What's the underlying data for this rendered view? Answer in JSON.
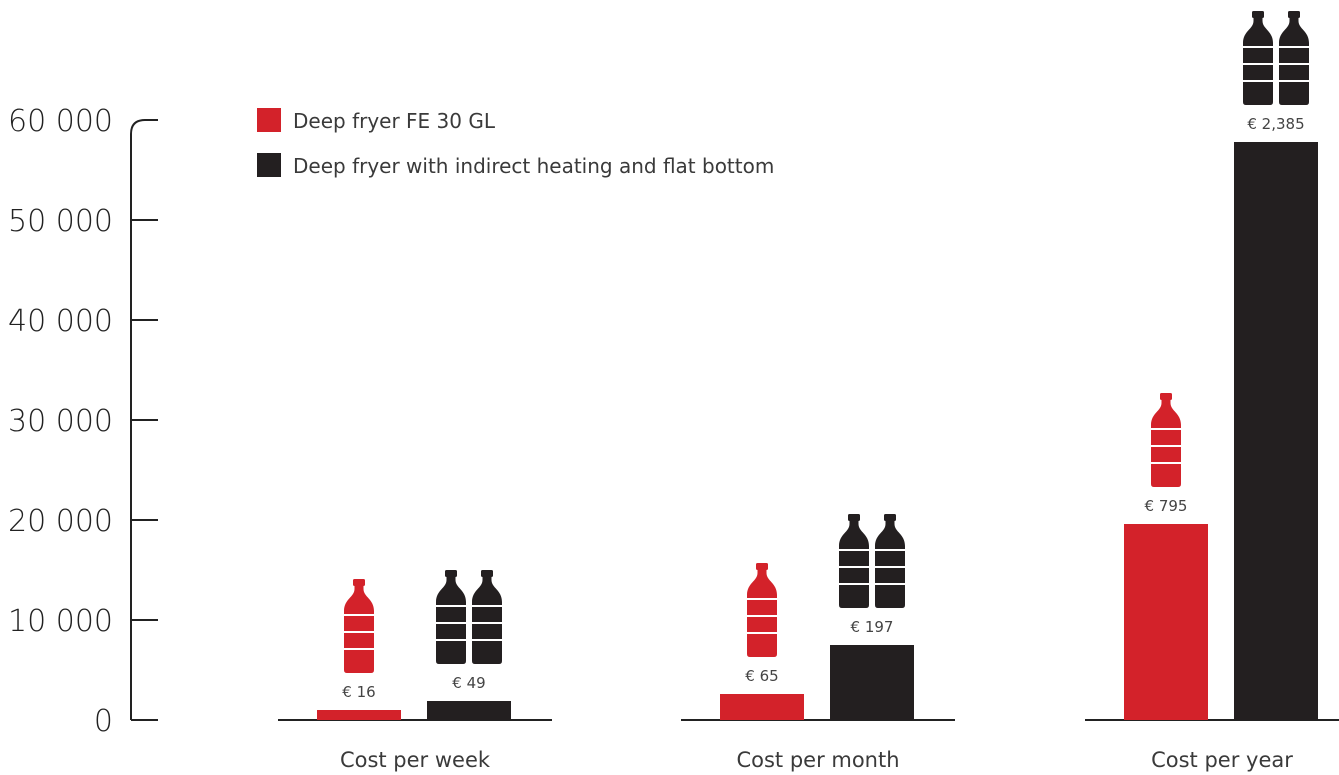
{
  "chart_data": {
    "type": "bar",
    "categories": [
      "Cost per week",
      "Cost per month",
      "Cost per year"
    ],
    "series": [
      {
        "name": "Deep fryer FE 30 GL",
        "color": "#d3222a",
        "values": [
          1000,
          2600,
          19600
        ],
        "labels": [
          "€ 16",
          "€ 65",
          "€ 795"
        ],
        "bottle_icons": [
          1,
          1,
          1
        ]
      },
      {
        "name": "Deep fryer with indirect heating and flat bottom",
        "color": "#231f20",
        "values": [
          1900,
          7500,
          57800
        ],
        "labels": [
          "€ 49",
          "€ 197",
          "€ 2,385"
        ],
        "bottle_icons": [
          2,
          2,
          2
        ]
      }
    ],
    "yticks": [
      "0",
      "10 000",
      "20 000",
      "30 000",
      "40 000",
      "50 000",
      "60 000"
    ],
    "ylim": [
      0,
      60000
    ],
    "xlabel": "",
    "ylabel": "",
    "legend_position": "top-left",
    "grid": false,
    "icon": "bottle-icon"
  }
}
